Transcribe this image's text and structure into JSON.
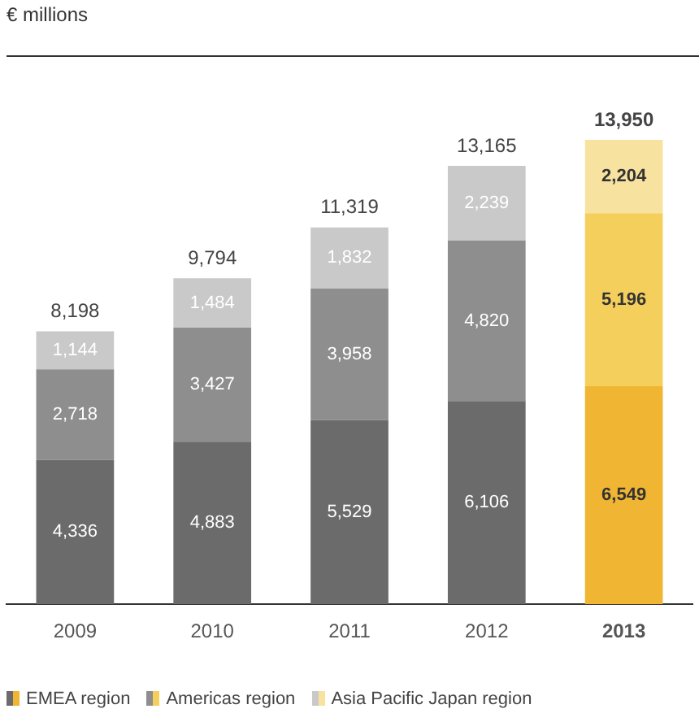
{
  "chart_data": {
    "type": "bar",
    "subtitle": "€ millions",
    "stacked": true,
    "legend": "bottom left",
    "categories": [
      "2009",
      "2010",
      "2011",
      "2012",
      "2013"
    ],
    "series": [
      {
        "name": "EMEA region",
        "color": "#6b6b6b",
        "colors": [
          "#6b6b6b",
          "#6b6b6b",
          "#6b6b6b",
          "#6b6b6b",
          "#efb533"
        ],
        "values": [
          4336,
          4883,
          5529,
          6106,
          6549
        ],
        "value_labels": [
          "4,336",
          "4,883",
          "5,529",
          "6,106",
          "6,549"
        ]
      },
      {
        "name": "Americas region",
        "color": "#8e8e8e",
        "colors": [
          "#8e8e8e",
          "#8e8e8e",
          "#8e8e8e",
          "#8e8e8e",
          "#f5cf5c"
        ],
        "values": [
          2718,
          3427,
          3958,
          4820,
          5196
        ],
        "value_labels": [
          "2,718",
          "3,427",
          "3,958",
          "4,820",
          "5,196"
        ]
      },
      {
        "name": "Asia Pacific Japan region",
        "color": "#c9c9c9",
        "colors": [
          "#c9c9c9",
          "#c9c9c9",
          "#c9c9c9",
          "#c9c9c9",
          "#f8e2a0"
        ],
        "values": [
          1144,
          1484,
          1832,
          2239,
          2204
        ],
        "value_labels": [
          "1,144",
          "1,484",
          "1,832",
          "2,239",
          "2,204"
        ]
      }
    ],
    "totals": [
      "8,198",
      "9,794",
      "11,319",
      "13,165",
      "13,950"
    ]
  }
}
